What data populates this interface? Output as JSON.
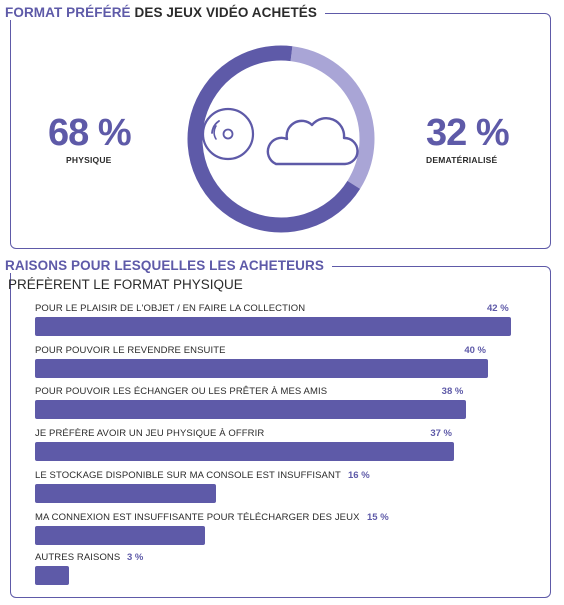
{
  "top": {
    "header_accent": "FORMAT PRÉFÉRÉ",
    "header_rest": "DES JEUX VIDÉO ACHETÉS",
    "physique_pct": "68 %",
    "physique_label": "PHYSIQUE",
    "demat_pct": "32 %",
    "demat_label": "DEMATÉRIALISÉ",
    "icons": [
      "disc-icon",
      "cloud-icon"
    ]
  },
  "bottom": {
    "header": "RAISONS POUR LESQUELLES LES ACHETEURS",
    "subheader": "PRÉFÈRENT LE FORMAT PHYSIQUE"
  },
  "colors": {
    "accent": "#5e5aa8",
    "light": "#a9a5d6",
    "text": "#2b2b2b"
  },
  "chart_data": [
    {
      "type": "pie",
      "categories": [
        "PHYSIQUE",
        "DEMATÉRIALISÉ"
      ],
      "values": [
        68,
        32
      ]
    },
    {
      "type": "bar",
      "categories": [
        "POUR LE PLAISIR DE L'OBJET / EN FAIRE LA COLLECTION",
        "POUR POUVOIR LE REVENDRE ENSUITE",
        "POUR POUVOIR LES ÉCHANGER OU LES PRÊTER À MES AMIS",
        "JE PRÉFÈRE AVOIR UN JEU PHYSIQUE À OFFRIR",
        "LE STOCKAGE DISPONIBLE SUR MA CONSOLE EST INSUFFISANT",
        "MA CONNEXION EST INSUFFISANTE POUR TÉLÉCHARGER DES JEUX",
        "AUTRES RAISONS"
      ],
      "values": [
        42,
        40,
        38,
        37,
        16,
        15,
        3
      ],
      "value_labels": [
        "42 %",
        "40 %",
        "38 %",
        "37 %",
        "16 %",
        "15 %",
        "3 %"
      ]
    }
  ]
}
